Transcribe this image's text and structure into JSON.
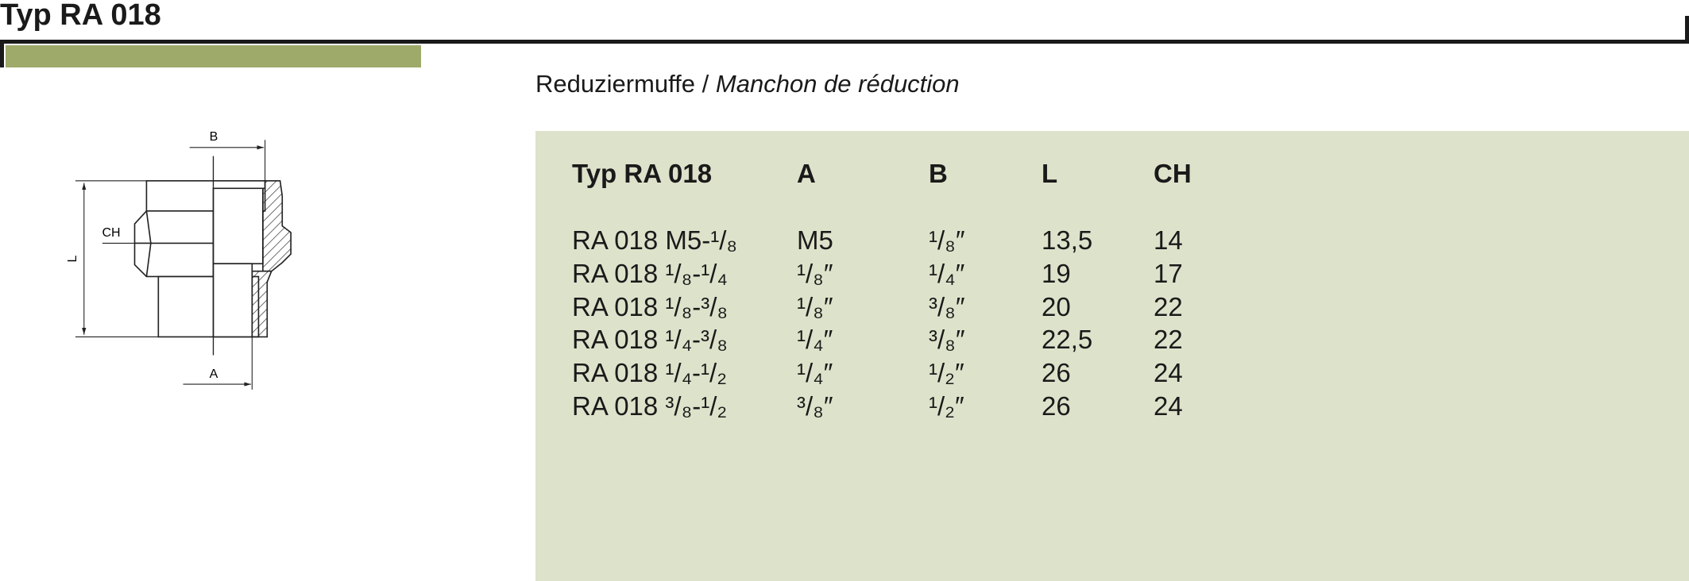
{
  "header": {
    "title": "Typ RA 018"
  },
  "subtitle": {
    "de": "Reduziermuffe",
    "separator": "/",
    "fr": "Manchon de réduction"
  },
  "drawing": {
    "labels": [
      "B",
      "CH",
      "L",
      "A"
    ]
  },
  "table": {
    "columns": [
      "Typ RA 018",
      "A",
      "B",
      "L",
      "CH"
    ],
    "rows": [
      [
        "RA 018 M5-¹/₈",
        "M5",
        "¹/₈″",
        "13,5",
        "14"
      ],
      [
        "RA 018 ¹/₈-¹/₄",
        "¹/₈″",
        "¹/₄″",
        "19",
        "17"
      ],
      [
        "RA 018 ¹/₈-³/₈",
        "¹/₈″",
        "³/₈″",
        "20",
        "22"
      ],
      [
        "RA 018 ¹/₄-³/₈",
        "¹/₄″",
        "³/₈″",
        "22,5",
        "22"
      ],
      [
        "RA 018 ¹/₄-¹/₂",
        "¹/₄″",
        "¹/₂″",
        "26",
        "24"
      ],
      [
        "RA 018 ³/₈-¹/₂",
        "³/₈″",
        "¹/₂″",
        "26",
        "24"
      ]
    ]
  }
}
